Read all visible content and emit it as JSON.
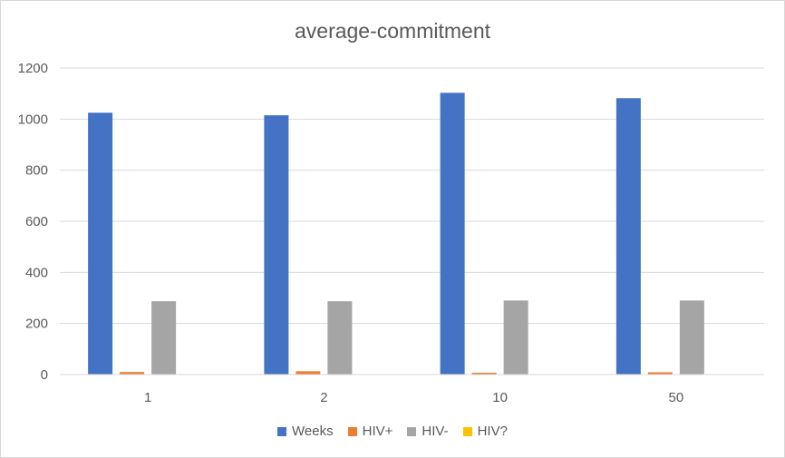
{
  "chart_data": {
    "type": "bar",
    "title": "average-commitment",
    "categories": [
      "1",
      "2",
      "10",
      "50"
    ],
    "series": [
      {
        "name": "Weeks",
        "color": "#4472c4",
        "values": [
          1025,
          1015,
          1103,
          1082
        ]
      },
      {
        "name": "HIV+",
        "color": "#ed7d31",
        "values": [
          10,
          13,
          7,
          9
        ]
      },
      {
        "name": "HIV-",
        "color": "#a5a5a5",
        "values": [
          287,
          287,
          290,
          290
        ]
      },
      {
        "name": "HIV?",
        "color": "#ffc000",
        "values": [
          0,
          0,
          0,
          0
        ]
      }
    ],
    "ylim": [
      0,
      1200
    ],
    "yticks": [
      "0",
      "200",
      "400",
      "600",
      "800",
      "1000",
      "1200"
    ],
    "grid": true,
    "legend_position": "bottom"
  }
}
